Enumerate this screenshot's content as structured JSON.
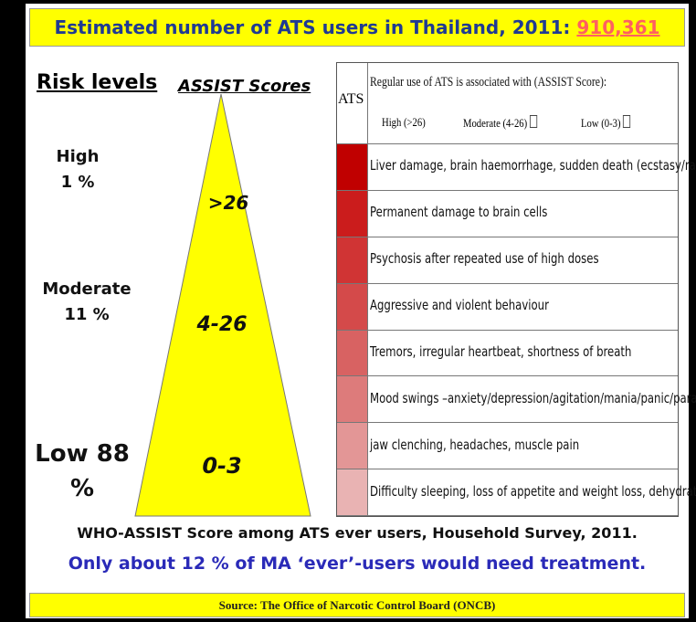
{
  "header": {
    "title": "Estimated number of ATS users in Thailand, 2011:",
    "highlight": "910,361"
  },
  "left": {
    "risk_heading": "Risk levels",
    "score_heading": "ASSIST Scores",
    "levels": [
      [
        "High",
        "1 %"
      ],
      [
        "Moderate",
        "11 %"
      ],
      [
        "Low 88",
        "%"
      ]
    ],
    "scores": [
      ">26",
      "4-26",
      "0-3"
    ]
  },
  "table": {
    "col_header": "ATS",
    "header": "Regular use of ATS is associated with (ASSIST Score):",
    "legend": [
      "High (>26)",
      "Moderate (4-26)",
      "Low (0-3)"
    ],
    "rows": [
      {
        "color": "#c00000",
        "text": "Liver damage, brain haemorrhage, sudden death (ecstasy/rare)"
      },
      {
        "color": "#cb1c1c",
        "text": "Permanent damage to brain cells"
      },
      {
        "color": "#d03434",
        "text": "Psychosis after repeated use of high doses"
      },
      {
        "color": "#d44a4a",
        "text": "Aggressive and violent behaviour"
      },
      {
        "color": "#d86262",
        "text": "Tremors, irregular heartbeat, shortness of breath"
      },
      {
        "color": "#dd7b7b",
        "text": "Mood swings –anxiety/depression/agitation/mania/panic/paranoia"
      },
      {
        "color": "#e39696",
        "text": "jaw clenching, headaches, muscle pain"
      },
      {
        "color": "#e9b3b3",
        "text": "Difficulty sleeping, loss of appetite and weight loss, dehydration"
      }
    ]
  },
  "footer": {
    "caption": "WHO-ASSIST Score among ATS ever users, Household Survey, 2011.",
    "note": "Only about 12 % of MA ‘ever’-users would need treatment.",
    "source": "Source:  The Office of Narcotic Control Board (ONCB)"
  }
}
